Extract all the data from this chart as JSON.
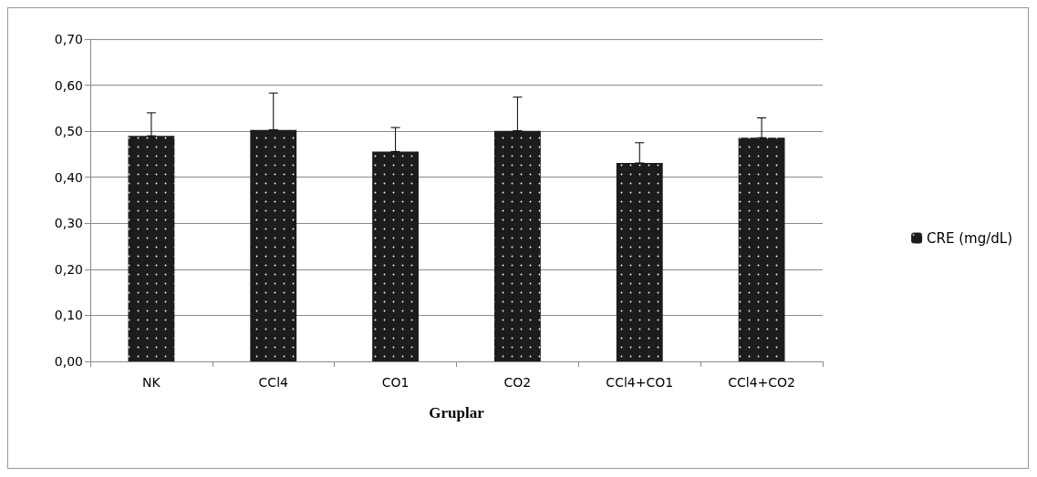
{
  "chart_data": {
    "type": "bar",
    "xlabel": "Gruplar",
    "categories": [
      "NK",
      "CCl4",
      "CO1",
      "CO2",
      "CCl4+CO1",
      "CCl4+CO2"
    ],
    "series": [
      {
        "name": "CRE (mg/dL)",
        "color": "#1c1c1c",
        "values": [
          0.49,
          0.503,
          0.456,
          0.501,
          0.431,
          0.486
        ],
        "errors": [
          [
            0.49,
            0.54
          ],
          [
            0.503,
            0.583
          ],
          [
            0.456,
            0.508
          ],
          [
            0.501,
            0.574
          ],
          [
            0.431,
            0.475
          ],
          [
            0.486,
            0.529
          ]
        ]
      }
    ],
    "ylim": [
      0,
      0.7
    ],
    "yticks": [
      {
        "value": 0,
        "label": "0,00"
      },
      {
        "value": 0.1,
        "label": "0,10"
      },
      {
        "value": 0.2,
        "label": "0,20"
      },
      {
        "value": 0.3,
        "label": "0,30"
      },
      {
        "value": 0.4,
        "label": "0,40"
      },
      {
        "value": 0.5,
        "label": "0,50"
      },
      {
        "value": 0.6,
        "label": "0,60"
      },
      {
        "value": 0.7,
        "label": "0,70"
      }
    ],
    "grid": "y",
    "legend": "right"
  }
}
